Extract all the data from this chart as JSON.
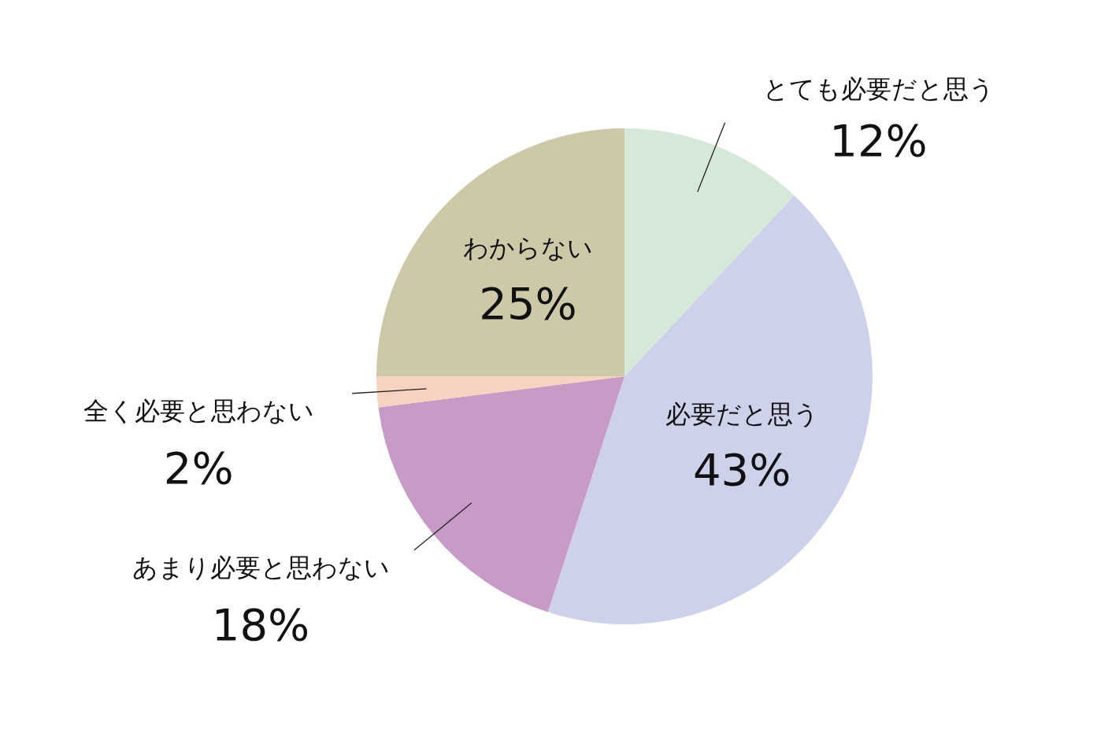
{
  "chart_data": {
    "type": "pie",
    "categories": [
      "とても必要だと思う",
      "必要だと思う",
      "あまり必要と思わない",
      "全く必要と思わない",
      "わからない"
    ],
    "values": [
      12,
      43,
      18,
      2,
      25
    ],
    "value_labels": [
      "12%",
      "43%",
      "18%",
      "2%",
      "25%"
    ],
    "colors": [
      "#d5e9d8",
      "#cdd2ea",
      "#c89bc6",
      "#f7d2c0",
      "#cdc8a7"
    ],
    "legend": false
  }
}
